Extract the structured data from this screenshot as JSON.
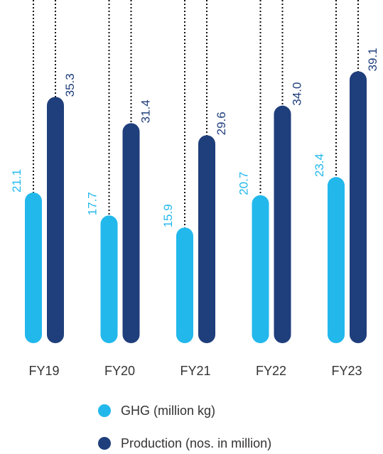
{
  "chart_data": {
    "type": "bar",
    "categories": [
      "FY19",
      "FY20",
      "FY21",
      "FY22",
      "FY23"
    ],
    "series": [
      {
        "name": "GHG (million kg)",
        "color": "#22b8ec",
        "values": [
          21.1,
          17.7,
          15.9,
          20.7,
          23.4
        ],
        "value_labels": [
          "21.1",
          "17.7",
          "15.9",
          "20.7",
          "23.4"
        ]
      },
      {
        "name": "Production (nos. in million)",
        "color": "#1f3e7c",
        "values": [
          35.3,
          31.4,
          29.6,
          34.0,
          39.1
        ],
        "value_labels": [
          "35.3",
          "31.4",
          "29.6",
          "34.0",
          "39.1"
        ]
      }
    ]
  }
}
